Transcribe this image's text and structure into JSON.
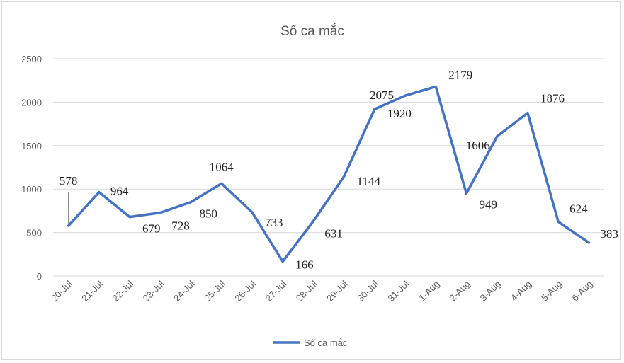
{
  "chart_data": {
    "type": "line",
    "title": "Số ca mắc",
    "categories": [
      "20-Jul",
      "21-Jul",
      "22-Jul",
      "23-Jul",
      "24-Jul",
      "25-Jul",
      "26-Jul",
      "27-Jul",
      "28-Jul",
      "29-Jul",
      "30-Jul",
      "31-Jul",
      "1-Aug",
      "2-Aug",
      "3-Aug",
      "4-Aug",
      "5-Aug",
      "6-Aug"
    ],
    "series": [
      {
        "name": "Số ca mắc",
        "values": [
          578,
          964,
          679,
          728,
          850,
          1064,
          733,
          166,
          631,
          1144,
          1920,
          2075,
          2179,
          949,
          1606,
          1876,
          624,
          383
        ],
        "color": "#4472c4"
      }
    ],
    "ylim": [
      0,
      2500
    ],
    "yticks": [
      0,
      500,
      1000,
      1500,
      2000,
      2500
    ],
    "ytick_labels": [
      "0",
      "500",
      "1000",
      "1500",
      "2000",
      "2500"
    ],
    "grid": true,
    "legend_position": "bottom",
    "xlabel": "",
    "ylabel": ""
  }
}
